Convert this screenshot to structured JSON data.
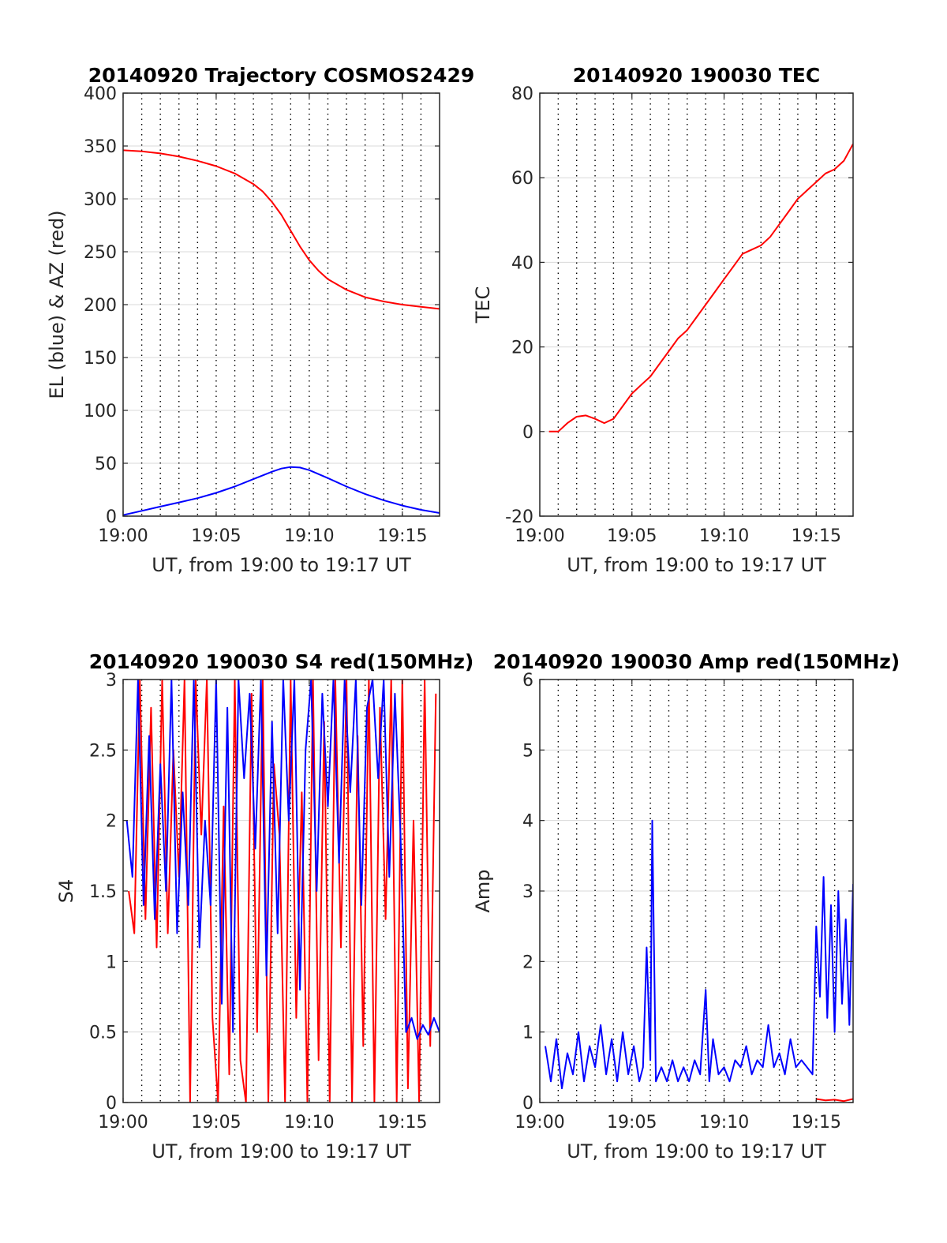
{
  "chart_data": [
    {
      "id": "traj",
      "type": "line",
      "title": "20140920 Trajectory COSMOS2429",
      "xlabel": "UT, from 19:00 to 19:17 UT",
      "ylabel": "EL (blue) & AZ (red)",
      "xlim": [
        0,
        17
      ],
      "ylim": [
        0,
        400
      ],
      "xticks": [
        0,
        5,
        10,
        15
      ],
      "xtick_labels": [
        "19:00",
        "19:05",
        "19:10",
        "19:15"
      ],
      "yticks": [
        0,
        50,
        100,
        150,
        200,
        250,
        300,
        350,
        400
      ],
      "ytick_labels": [
        "0",
        "50",
        "100",
        "150",
        "200",
        "250",
        "300",
        "350",
        "400"
      ],
      "vgrid_minutes": [
        1,
        2,
        3,
        4,
        5,
        6,
        7,
        8,
        9,
        10,
        11,
        12,
        13,
        14,
        15,
        16
      ],
      "grid": true,
      "series": [
        {
          "color": "#ff0000",
          "x": [
            0,
            1,
            2,
            3,
            4,
            5,
            6,
            7,
            7.5,
            8,
            8.5,
            9,
            9.5,
            10,
            10.5,
            11,
            12,
            13,
            14,
            15,
            16,
            17
          ],
          "y": [
            346,
            345,
            343,
            340,
            336,
            331,
            324,
            314,
            307,
            297,
            285,
            270,
            255,
            242,
            232,
            224,
            214,
            207,
            203,
            200,
            198,
            196
          ]
        },
        {
          "color": "#0000ff",
          "x": [
            0,
            1,
            2,
            3,
            4,
            5,
            6,
            7,
            8,
            8.5,
            9,
            9.5,
            10,
            11,
            12,
            13,
            14,
            15,
            16,
            17
          ],
          "y": [
            1,
            5,
            9,
            13,
            17,
            22,
            28,
            35,
            42,
            45,
            46.5,
            46,
            43.5,
            36,
            28,
            21,
            15,
            10,
            6,
            3
          ]
        }
      ]
    },
    {
      "id": "tec",
      "type": "line",
      "title": "20140920 190030 TEC",
      "xlabel": "UT, from 19:00 to 19:17 UT",
      "ylabel": "TEC",
      "xlim": [
        0,
        17
      ],
      "ylim": [
        -20,
        80
      ],
      "xticks": [
        0,
        5,
        10,
        15
      ],
      "xtick_labels": [
        "19:00",
        "19:05",
        "19:10",
        "19:15"
      ],
      "yticks": [
        -20,
        0,
        20,
        40,
        60,
        80
      ],
      "ytick_labels": [
        "-20",
        "0",
        "20",
        "40",
        "60",
        "80"
      ],
      "vgrid_minutes": [
        1,
        2,
        3,
        4,
        5,
        6,
        7,
        8,
        9,
        10,
        11,
        12,
        13,
        14,
        15,
        16
      ],
      "grid": true,
      "series": [
        {
          "color": "#ff0000",
          "x": [
            0.5,
            1,
            1.5,
            2,
            2.5,
            3,
            3.5,
            4,
            4.5,
            5,
            5.5,
            6,
            6.5,
            7,
            7.5,
            8,
            8.5,
            9,
            9.5,
            10,
            10.5,
            11,
            11.5,
            12,
            12.5,
            13,
            13.5,
            14,
            14.5,
            15,
            15.5,
            16,
            16.5,
            17
          ],
          "y": [
            0,
            0,
            2,
            3.5,
            3.8,
            3,
            2,
            3,
            6,
            9,
            11,
            13,
            16,
            19,
            22,
            24,
            27,
            30,
            33,
            36,
            39,
            42,
            43,
            44,
            46,
            49,
            52,
            55,
            57,
            59,
            61,
            62,
            64,
            68
          ]
        }
      ]
    },
    {
      "id": "s4",
      "type": "line",
      "title": "20140920 190030 S4 red(150MHz)",
      "xlabel": "UT, from 19:00 to 19:17 UT",
      "ylabel": "S4",
      "xlim": [
        0,
        17
      ],
      "ylim": [
        0,
        3
      ],
      "xticks": [
        0,
        5,
        10,
        15
      ],
      "xtick_labels": [
        "19:00",
        "19:05",
        "19:10",
        "19:15"
      ],
      "yticks": [
        0,
        0.5,
        1,
        1.5,
        2,
        2.5,
        3
      ],
      "ytick_labels": [
        "0",
        "0.5",
        "1",
        "1.5",
        "2",
        "2.5",
        "3"
      ],
      "vgrid_minutes": [
        1,
        2,
        3,
        4,
        5,
        6,
        7,
        8,
        9,
        10,
        11,
        12,
        13,
        14,
        15,
        16
      ],
      "grid": true,
      "series": [
        {
          "color": "#ff0000",
          "x": [
            0.3,
            0.6,
            0.9,
            1.2,
            1.5,
            1.8,
            2.1,
            2.4,
            2.7,
            3.0,
            3.3,
            3.6,
            3.9,
            4.2,
            4.5,
            4.8,
            5.1,
            5.4,
            5.7,
            6.0,
            6.3,
            6.6,
            6.9,
            7.2,
            7.5,
            7.8,
            8.1,
            8.4,
            8.7,
            9.0,
            9.3,
            9.6,
            9.9,
            10.2,
            10.5,
            10.8,
            11.1,
            11.4,
            11.7,
            12.0,
            12.3,
            12.6,
            12.9,
            13.2,
            13.5,
            13.8,
            14.1,
            14.4,
            14.7,
            15.0,
            15.3,
            15.6,
            15.9,
            16.2,
            16.5,
            16.8
          ],
          "y": [
            1.5,
            1.2,
            3.0,
            1.3,
            2.8,
            1.1,
            3.0,
            1.2,
            2.5,
            1.6,
            3.0,
            0.0,
            3.0,
            1.9,
            3.0,
            0.6,
            0.0,
            2.1,
            0.2,
            3.0,
            0.3,
            0.0,
            2.9,
            0.5,
            3.0,
            0.0,
            2.4,
            1.9,
            0.0,
            3.0,
            0.6,
            2.2,
            0.0,
            3.0,
            0.3,
            2.7,
            0.0,
            3.0,
            1.1,
            3.0,
            0.0,
            2.6,
            0.4,
            3.0,
            0.0,
            2.8,
            1.3,
            3.0,
            0.0,
            3.0,
            0.1,
            2.0,
            0.0,
            3.0,
            0.4,
            2.9
          ]
        },
        {
          "color": "#0000ff",
          "x": [
            0.2,
            0.5,
            0.8,
            1.1,
            1.4,
            1.7,
            2.0,
            2.3,
            2.6,
            2.9,
            3.2,
            3.5,
            3.8,
            4.1,
            4.4,
            4.7,
            5.0,
            5.3,
            5.6,
            5.9,
            6.2,
            6.5,
            6.8,
            7.1,
            7.4,
            7.7,
            8.0,
            8.3,
            8.6,
            8.9,
            9.2,
            9.5,
            9.8,
            10.1,
            10.4,
            10.7,
            11.0,
            11.3,
            11.6,
            11.9,
            12.2,
            12.5,
            12.8,
            13.1,
            13.4,
            13.7,
            14.0,
            14.3,
            14.6,
            14.9,
            15.2,
            15.5,
            15.8,
            16.1,
            16.4,
            16.7,
            17.0
          ],
          "y": [
            2.0,
            1.6,
            3.0,
            1.4,
            2.6,
            1.3,
            2.4,
            1.5,
            3.0,
            1.2,
            2.2,
            1.4,
            3.0,
            1.1,
            2.0,
            1.4,
            3.0,
            0.7,
            2.8,
            0.5,
            3.0,
            2.3,
            2.9,
            1.8,
            3.0,
            0.9,
            2.7,
            1.2,
            3.0,
            2.0,
            3.0,
            0.8,
            2.5,
            3.0,
            1.5,
            2.9,
            2.1,
            3.0,
            1.7,
            3.0,
            2.2,
            3.0,
            1.4,
            2.8,
            3.0,
            2.3,
            3.0,
            1.6,
            2.9,
            1.9,
            0.5,
            0.6,
            0.45,
            0.55,
            0.48,
            0.6,
            0.5
          ]
        }
      ]
    },
    {
      "id": "amp",
      "type": "line",
      "title": "20140920 190030 Amp red(150MHz)",
      "xlabel": "UT, from 19:00 to 19:17 UT",
      "ylabel": "Amp",
      "xlim": [
        0,
        17
      ],
      "ylim": [
        0,
        6
      ],
      "xticks": [
        0,
        5,
        10,
        15
      ],
      "xtick_labels": [
        "19:00",
        "19:05",
        "19:10",
        "19:15"
      ],
      "yticks": [
        0,
        1,
        2,
        3,
        4,
        5,
        6
      ],
      "ytick_labels": [
        "0",
        "1",
        "2",
        "3",
        "4",
        "5",
        "6"
      ],
      "vgrid_minutes": [
        1,
        2,
        3,
        4,
        5,
        6,
        7,
        8,
        9,
        10,
        11,
        12,
        13,
        14,
        15,
        16
      ],
      "grid": true,
      "series": [
        {
          "color": "#0000ff",
          "x": [
            0.3,
            0.6,
            0.9,
            1.2,
            1.5,
            1.8,
            2.1,
            2.4,
            2.7,
            3.0,
            3.3,
            3.6,
            3.9,
            4.2,
            4.5,
            4.8,
            5.1,
            5.4,
            5.6,
            5.8,
            6.0,
            6.1,
            6.3,
            6.6,
            6.9,
            7.2,
            7.5,
            7.8,
            8.1,
            8.4,
            8.7,
            9.0,
            9.2,
            9.4,
            9.7,
            10.0,
            10.3,
            10.6,
            10.9,
            11.2,
            11.5,
            11.8,
            12.1,
            12.4,
            12.7,
            13.0,
            13.3,
            13.6,
            13.9,
            14.2,
            14.5,
            14.8,
            15.0,
            15.2,
            15.4,
            15.6,
            15.8,
            16.0,
            16.2,
            16.4,
            16.6,
            16.8,
            17.0
          ],
          "y": [
            0.8,
            0.3,
            0.9,
            0.2,
            0.7,
            0.4,
            1.0,
            0.3,
            0.8,
            0.5,
            1.1,
            0.4,
            0.9,
            0.3,
            1.0,
            0.4,
            0.8,
            0.3,
            0.5,
            2.2,
            0.6,
            4.0,
            0.3,
            0.5,
            0.3,
            0.6,
            0.3,
            0.5,
            0.3,
            0.6,
            0.4,
            1.6,
            0.3,
            0.9,
            0.4,
            0.5,
            0.3,
            0.6,
            0.5,
            0.8,
            0.4,
            0.6,
            0.5,
            1.1,
            0.5,
            0.7,
            0.4,
            0.9,
            0.5,
            0.6,
            0.5,
            0.4,
            2.5,
            1.5,
            3.2,
            1.2,
            2.8,
            1.0,
            3.0,
            1.4,
            2.6,
            1.1,
            3.1
          ]
        },
        {
          "color": "#ff0000",
          "x": [
            15.0,
            15.5,
            16.0,
            16.5,
            17.0
          ],
          "y": [
            0.05,
            0.03,
            0.04,
            0.02,
            0.05
          ]
        }
      ]
    }
  ]
}
